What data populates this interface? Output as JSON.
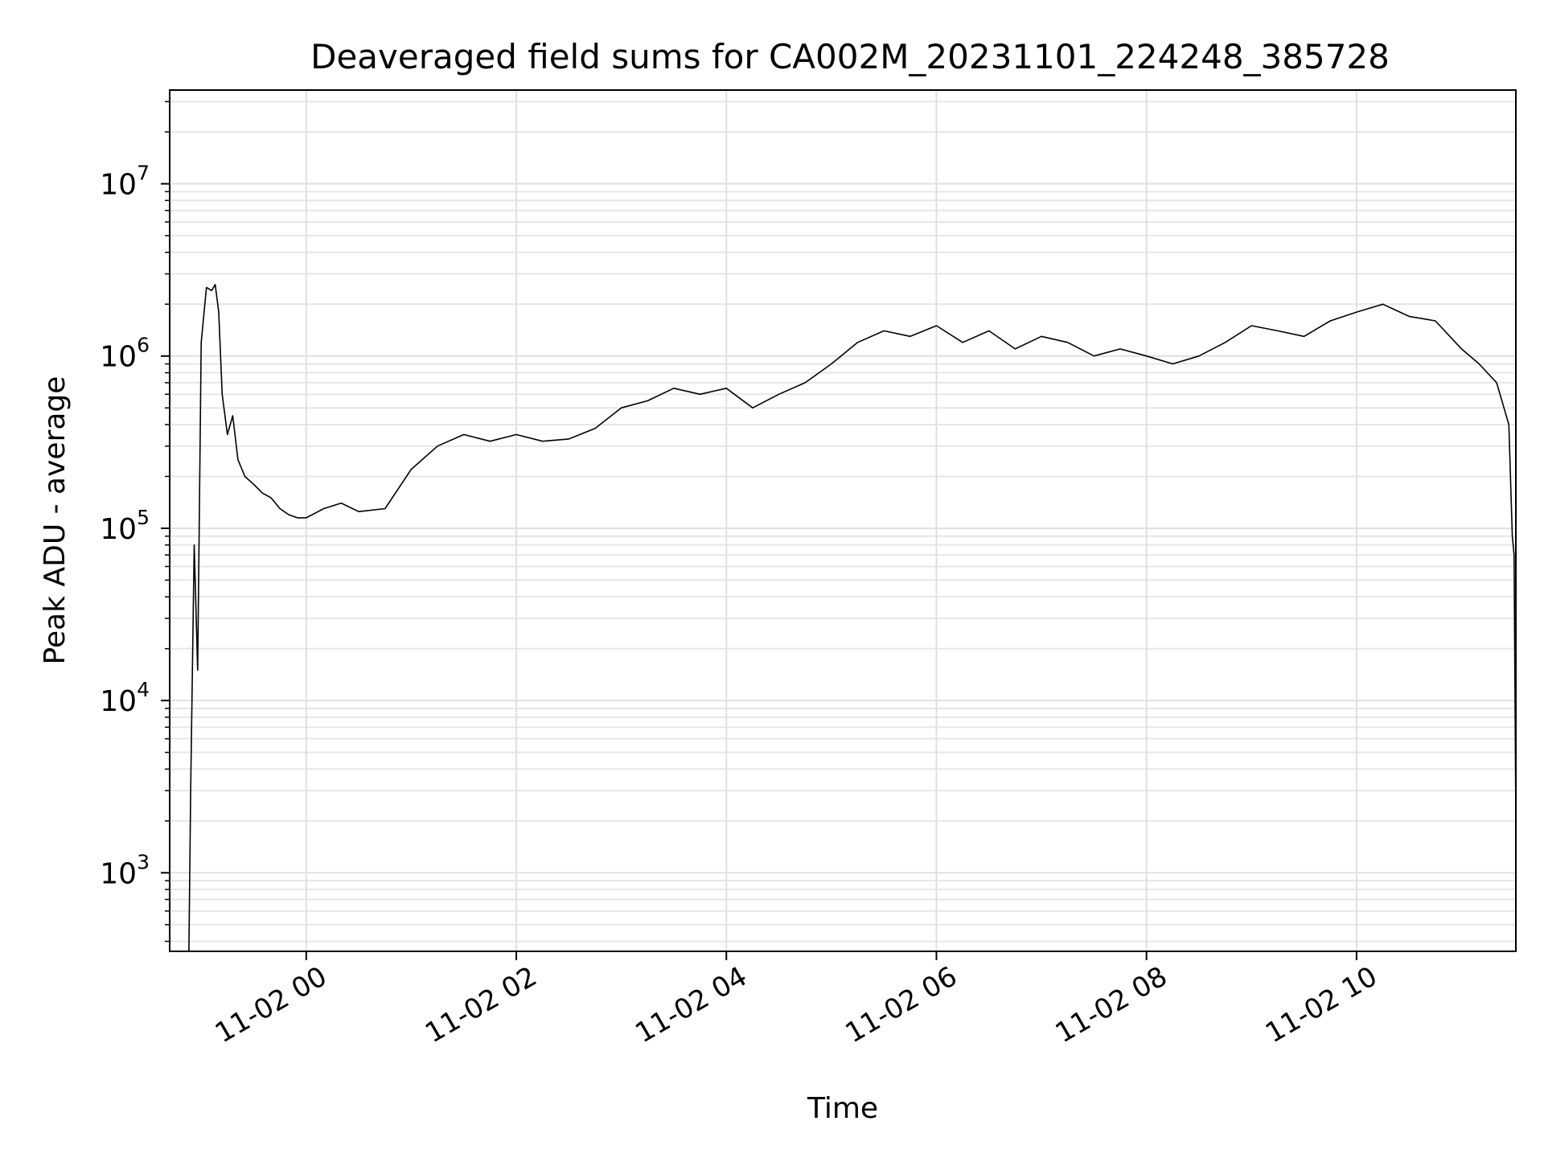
{
  "chart_data": {
    "type": "line",
    "title": "Deaveraged field sums for CA002M_20231101_224248_385728",
    "xlabel": "Time",
    "ylabel": "Peak ADU - average",
    "yscale": "log",
    "ylim": [
      350,
      35000000
    ],
    "xlim": [
      "2023-11-01 22:42",
      "2023-11-02 11:31"
    ],
    "grid": true,
    "x_ticks": [
      {
        "value": "2023-11-02 00:00",
        "label": "11-02 00"
      },
      {
        "value": "2023-11-02 02:00",
        "label": "11-02 02"
      },
      {
        "value": "2023-11-02 04:00",
        "label": "11-02 04"
      },
      {
        "value": "2023-11-02 06:00",
        "label": "11-02 06"
      },
      {
        "value": "2023-11-02 08:00",
        "label": "11-02 08"
      },
      {
        "value": "2023-11-02 10:00",
        "label": "11-02 10"
      }
    ],
    "y_ticks": [
      {
        "value": 1000,
        "base": "10",
        "exp": "3"
      },
      {
        "value": 10000,
        "base": "10",
        "exp": "4"
      },
      {
        "value": 100000,
        "base": "10",
        "exp": "5"
      },
      {
        "value": 1000000,
        "base": "10",
        "exp": "6"
      },
      {
        "value": 10000000,
        "base": "10",
        "exp": "7"
      }
    ],
    "series": [
      {
        "line_color": "#000000",
        "x": [
          "2023-11-01 22:53",
          "2023-11-01 22:54",
          "2023-11-01 22:56",
          "2023-11-01 22:58",
          "2023-11-01 23:00",
          "2023-11-01 23:03",
          "2023-11-01 23:06",
          "2023-11-01 23:08",
          "2023-11-01 23:10",
          "2023-11-01 23:12",
          "2023-11-01 23:15",
          "2023-11-01 23:18",
          "2023-11-01 23:21",
          "2023-11-01 23:25",
          "2023-11-01 23:30",
          "2023-11-01 23:35",
          "2023-11-01 23:40",
          "2023-11-01 23:45",
          "2023-11-01 23:50",
          "2023-11-01 23:55",
          "2023-11-02 00:00",
          "2023-11-02 00:10",
          "2023-11-02 00:20",
          "2023-11-02 00:30",
          "2023-11-02 00:45",
          "2023-11-02 01:00",
          "2023-11-02 01:15",
          "2023-11-02 01:30",
          "2023-11-02 01:45",
          "2023-11-02 02:00",
          "2023-11-02 02:15",
          "2023-11-02 02:30",
          "2023-11-02 02:45",
          "2023-11-02 03:00",
          "2023-11-02 03:15",
          "2023-11-02 03:30",
          "2023-11-02 03:45",
          "2023-11-02 04:00",
          "2023-11-02 04:15",
          "2023-11-02 04:30",
          "2023-11-02 04:45",
          "2023-11-02 05:00",
          "2023-11-02 05:15",
          "2023-11-02 05:30",
          "2023-11-02 05:45",
          "2023-11-02 06:00",
          "2023-11-02 06:15",
          "2023-11-02 06:30",
          "2023-11-02 06:45",
          "2023-11-02 07:00",
          "2023-11-02 07:15",
          "2023-11-02 07:30",
          "2023-11-02 07:45",
          "2023-11-02 08:00",
          "2023-11-02 08:15",
          "2023-11-02 08:30",
          "2023-11-02 08:45",
          "2023-11-02 09:00",
          "2023-11-02 09:15",
          "2023-11-02 09:30",
          "2023-11-02 09:45",
          "2023-11-02 10:00",
          "2023-11-02 10:15",
          "2023-11-02 10:30",
          "2023-11-02 10:45",
          "2023-11-02 11:00",
          "2023-11-02 11:10",
          "2023-11-02 11:20",
          "2023-11-02 11:27",
          "2023-11-02 11:29",
          "2023-11-02 11:30",
          "2023-11-02 11:31"
        ],
        "y": [
          350,
          3000,
          80000,
          15000,
          1200000,
          2500000,
          2400000,
          2600000,
          1800000,
          600000,
          350000,
          450000,
          250000,
          200000,
          180000,
          160000,
          150000,
          130000,
          120000,
          115000,
          115000,
          130000,
          140000,
          125000,
          130000,
          220000,
          300000,
          350000,
          320000,
          350000,
          320000,
          330000,
          380000,
          500000,
          550000,
          650000,
          600000,
          650000,
          500000,
          600000,
          700000,
          900000,
          1200000,
          1400000,
          1300000,
          1500000,
          1200000,
          1400000,
          1100000,
          1300000,
          1200000,
          1000000,
          1100000,
          1000000,
          900000,
          1000000,
          1200000,
          1500000,
          1400000,
          1300000,
          1600000,
          1800000,
          2000000,
          1700000,
          1600000,
          1100000,
          900000,
          700000,
          400000,
          90000,
          70000,
          2000
        ]
      }
    ]
  }
}
